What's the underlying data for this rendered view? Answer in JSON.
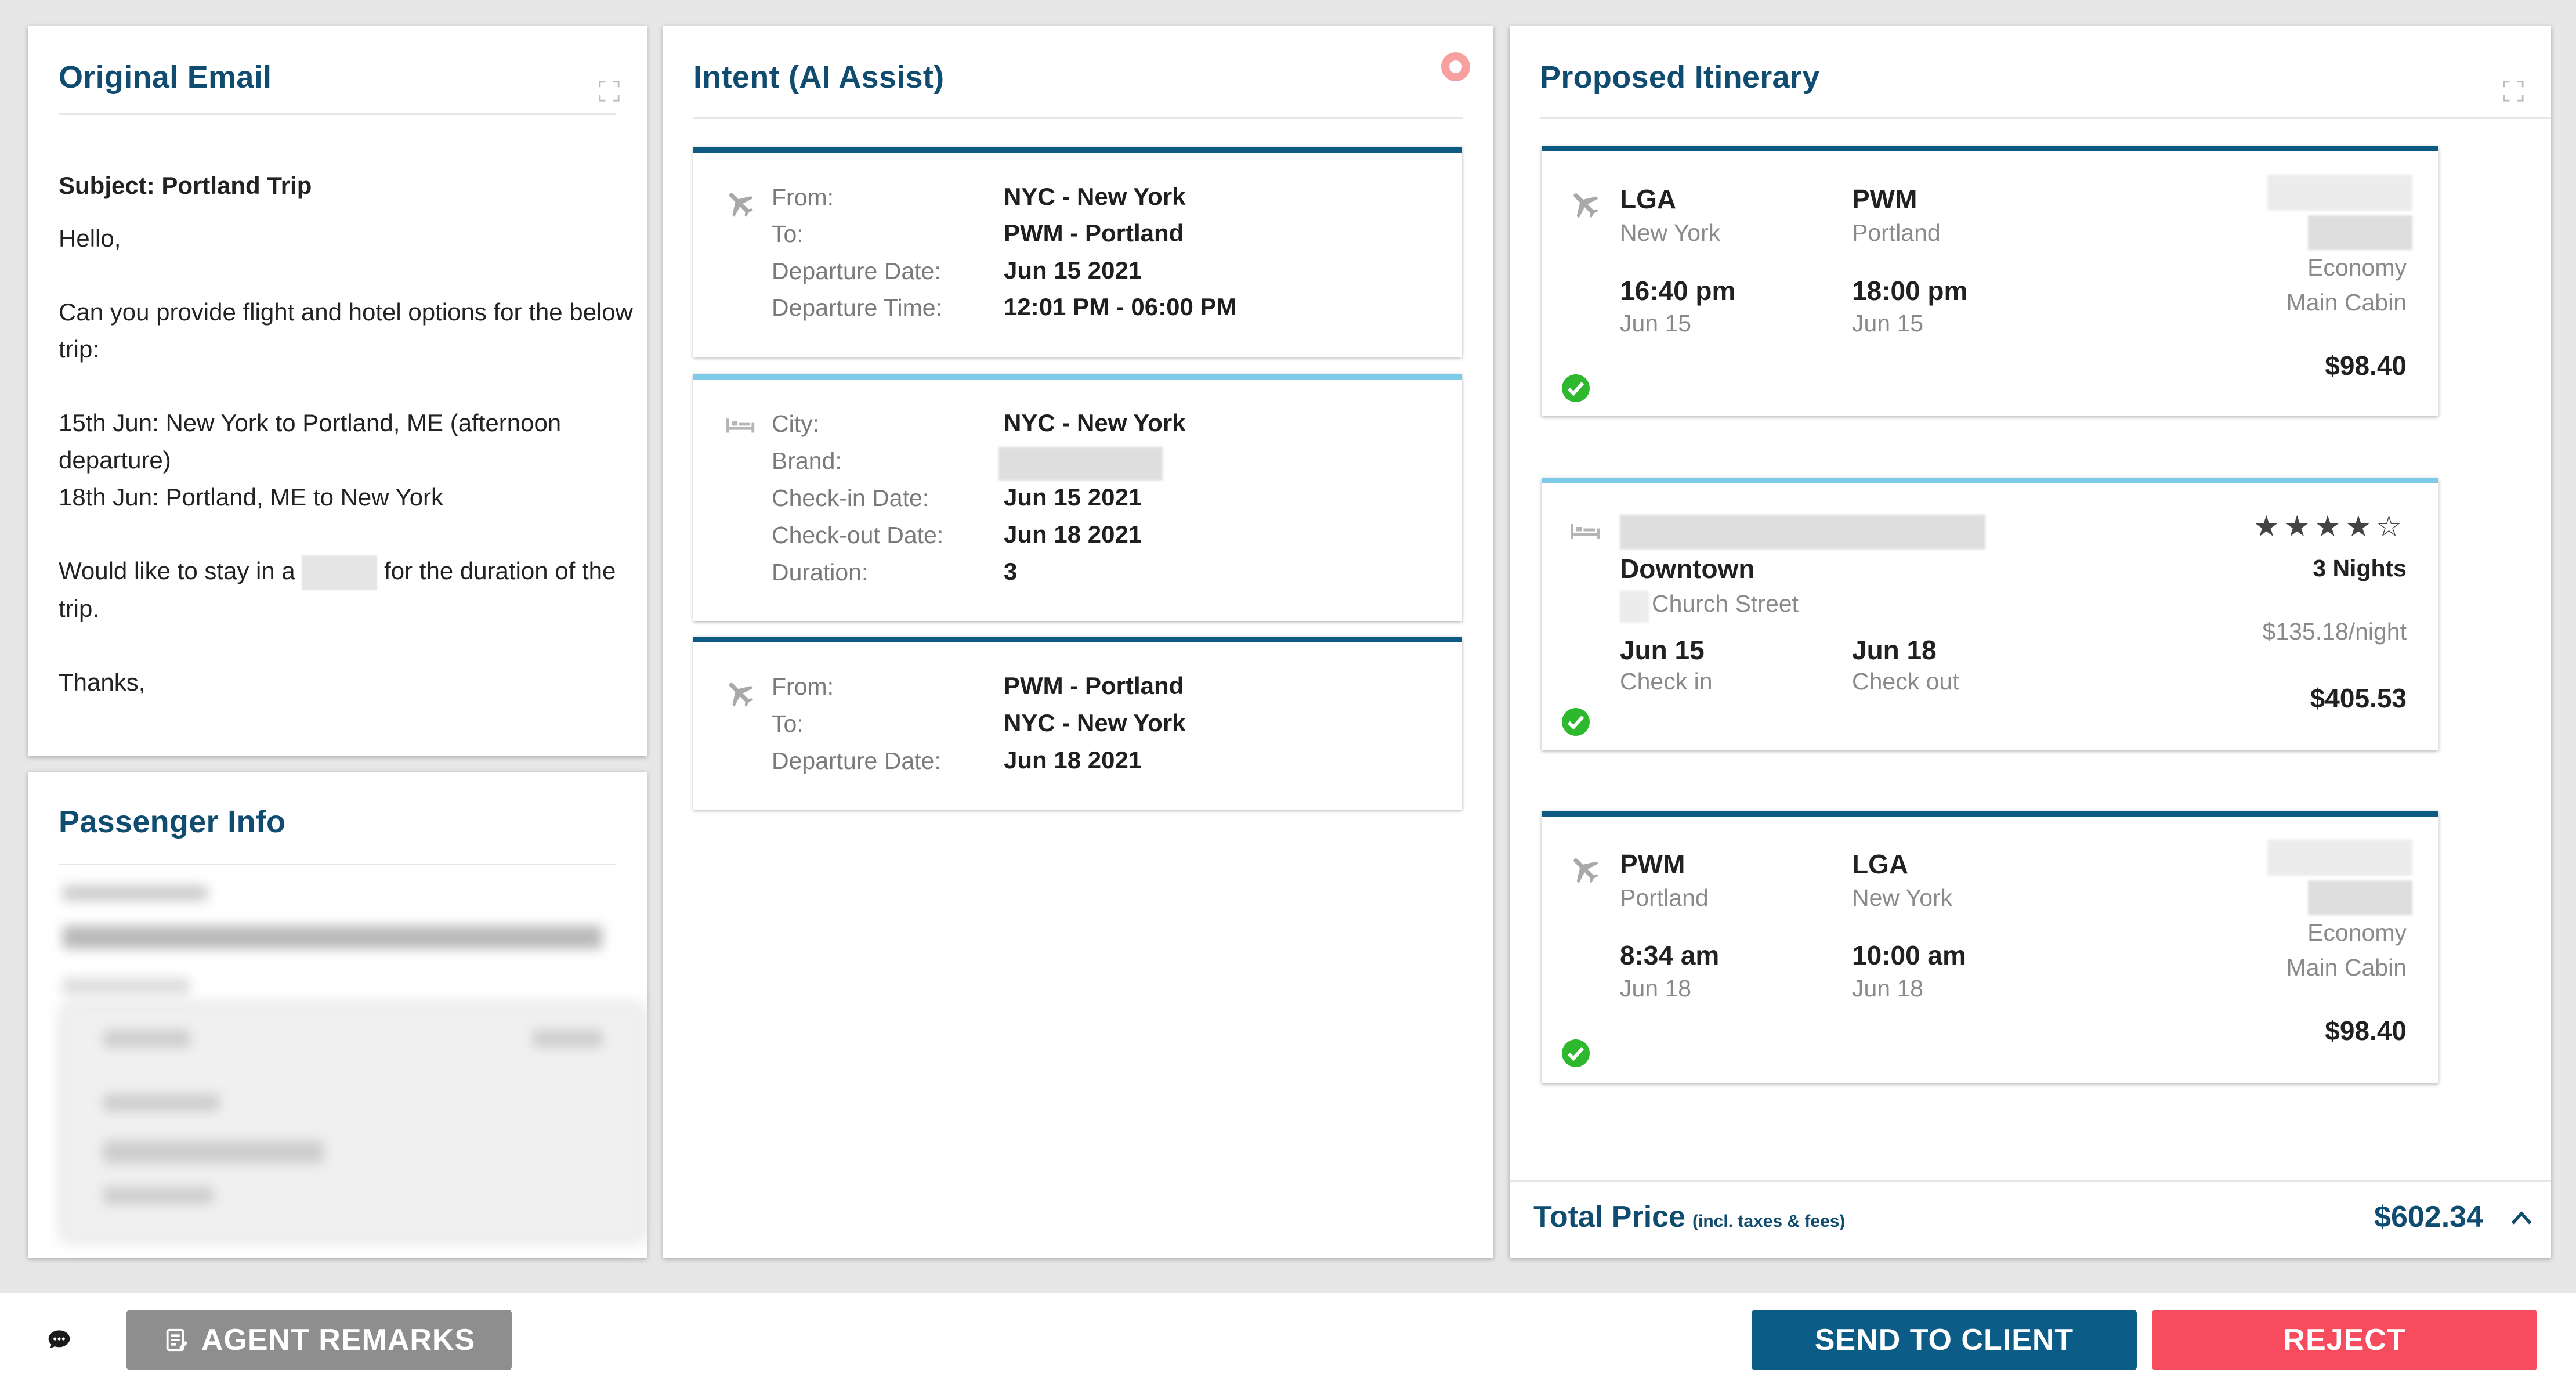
{
  "email": {
    "title": "Original Email",
    "subject": "Subject: Portland Trip",
    "greeting": "Hello,",
    "line1": "Can you provide flight and hotel options for the below trip:",
    "line2": "15th Jun: New York to Portland, ME (afternoon departure)",
    "line3": "18th Jun: Portland, ME to New York",
    "line4_before": "Would like to stay in a",
    "line4_after": "for the duration of the trip.",
    "signoff": "Thanks,"
  },
  "passenger": {
    "title": "Passenger Info"
  },
  "intent": {
    "title": "Intent (AI Assist)",
    "flight1": {
      "labels": [
        "From:",
        "To:",
        "Departure Date:",
        "Departure Time:"
      ],
      "values": [
        "NYC - New York",
        "PWM - Portland",
        "Jun 15 2021",
        "12:01 PM - 06:00 PM"
      ]
    },
    "hotel": {
      "labels": [
        "City:",
        "Brand:",
        "Check-in Date:",
        "Check-out Date:",
        "Duration:"
      ],
      "values": [
        "NYC - New York",
        "",
        "Jun 15 2021",
        "Jun 18 2021",
        "3"
      ]
    },
    "flight2": {
      "labels": [
        "From:",
        "To:",
        "Departure Date:"
      ],
      "values": [
        "PWM - Portland",
        "NYC - New York",
        "Jun 18 2021"
      ]
    }
  },
  "itinerary": {
    "title": "Proposed Itinerary",
    "flight1": {
      "from_code": "LGA",
      "from_city": "New York",
      "dep_time": "16:40 pm",
      "dep_date": "Jun 15",
      "to_code": "PWM",
      "to_city": "Portland",
      "arr_time": "18:00 pm",
      "arr_date": "Jun 15",
      "cabin1": "Economy",
      "cabin2": "Main Cabin",
      "price": "$98.40"
    },
    "hotel": {
      "area": "Downtown",
      "street": "Church Street",
      "checkin_date": "Jun 15",
      "checkin_label": "Check in",
      "checkout_date": "Jun 18",
      "checkout_label": "Check out",
      "stars": "★★★★☆",
      "rating": 4,
      "nights": "3 Nights",
      "rate": "$135.18/night",
      "price": "$405.53"
    },
    "flight2": {
      "from_code": "PWM",
      "from_city": "Portland",
      "dep_time": "8:34 am",
      "dep_date": "Jun 18",
      "to_code": "LGA",
      "to_city": "New York",
      "arr_time": "10:00 am",
      "arr_date": "Jun 18",
      "cabin1": "Economy",
      "cabin2": "Main Cabin",
      "price": "$98.40"
    },
    "total_label": "Total Price",
    "total_incl": "(incl. taxes & fees)",
    "total_value": "$602.34"
  },
  "footer": {
    "agent_remarks": "AGENT REMARKS",
    "send": "SEND TO CLIENT",
    "reject": "REJECT"
  },
  "colors": {
    "title": "#0f4c70",
    "flight_bar": "#0d5a82",
    "hotel_bar": "#7dcbe6",
    "send": "#0b5c86",
    "reject": "#f64c5e",
    "agent_btn": "#8e8e8e",
    "check": "#2eb82e"
  }
}
